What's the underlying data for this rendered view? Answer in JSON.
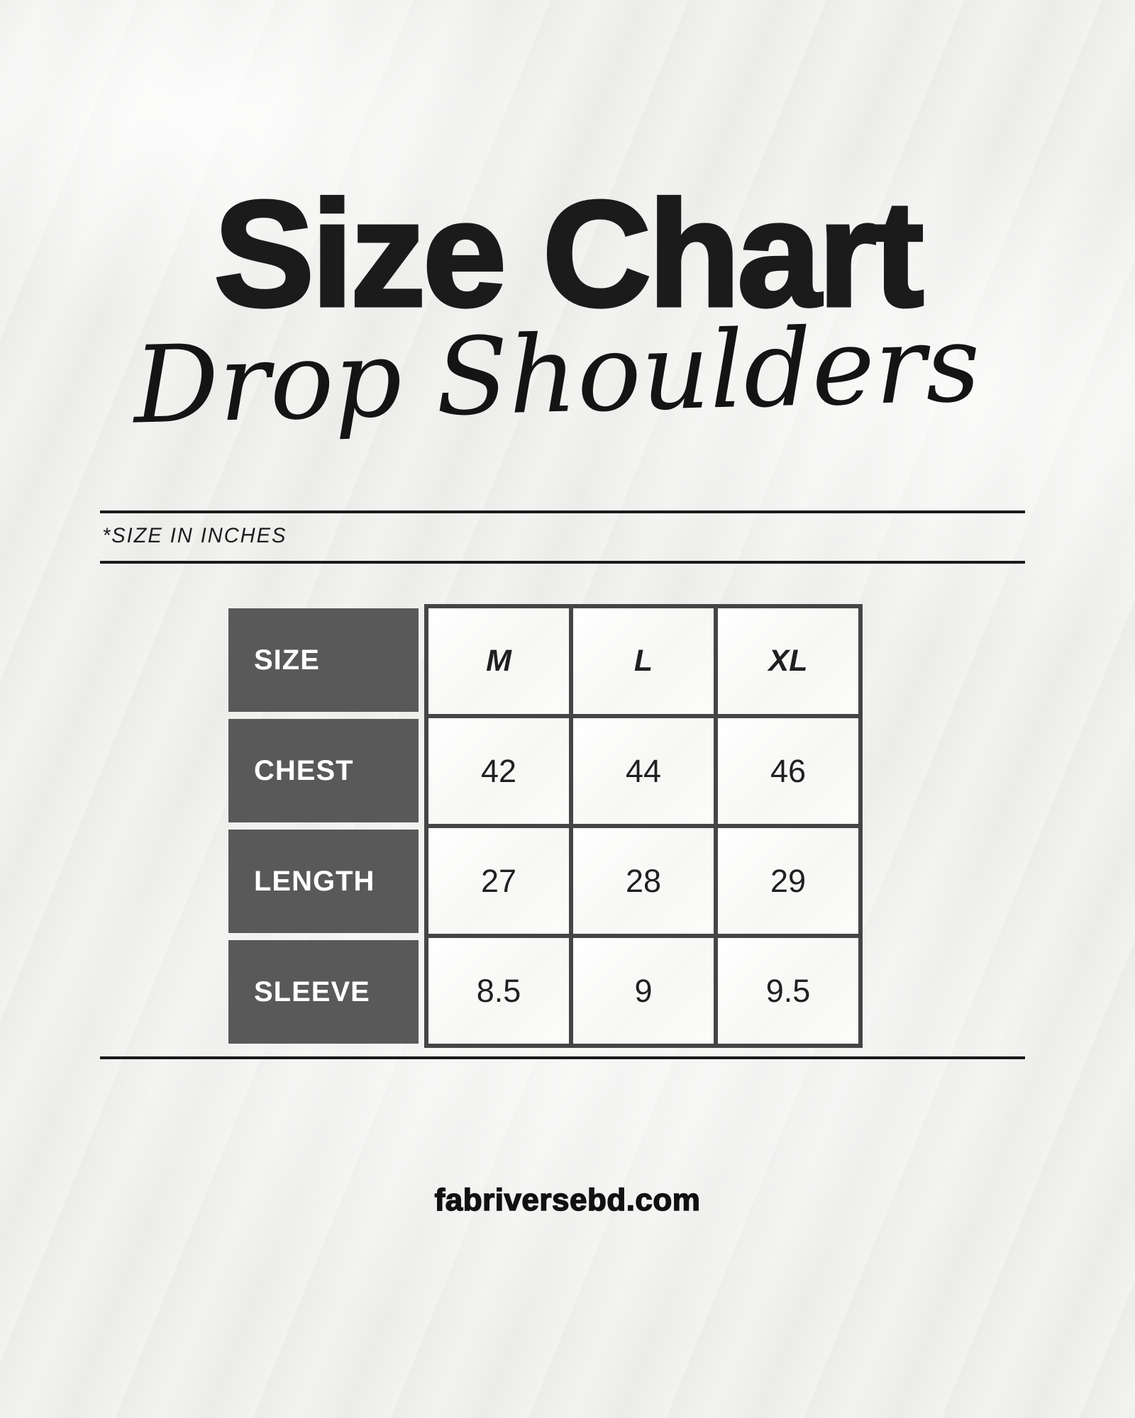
{
  "header": {
    "title": "Size Chart",
    "subtitle": "Drop Shoulders",
    "units_note": "*SIZE IN INCHES"
  },
  "table": {
    "corner_label": "SIZE",
    "columns": [
      "M",
      "L",
      "XL"
    ],
    "rows": [
      {
        "label": "CHEST",
        "values": [
          "42",
          "44",
          "46"
        ]
      },
      {
        "label": "LENGTH",
        "values": [
          "27",
          "28",
          "29"
        ]
      },
      {
        "label": "SLEEVE",
        "values": [
          "8.5",
          "9",
          "9.5"
        ]
      }
    ]
  },
  "footer": {
    "website": "fabriversebd.com"
  },
  "colors": {
    "page_bg": "#f2f2f0",
    "ink": "#1b1b1b",
    "label_cell_bg": "#595959",
    "label_text": "#ffffff",
    "grid_border": "#454545",
    "cell_bg": "#fafaf9"
  },
  "chart_data": {
    "type": "table",
    "title": "Size Chart",
    "subtitle": "Drop Shoulders",
    "units": "inches",
    "columns": [
      "SIZE",
      "M",
      "L",
      "XL"
    ],
    "rows": [
      [
        "CHEST",
        42,
        44,
        46
      ],
      [
        "LENGTH",
        27,
        28,
        29
      ],
      [
        "SLEEVE",
        8.5,
        9,
        9.5
      ]
    ]
  }
}
